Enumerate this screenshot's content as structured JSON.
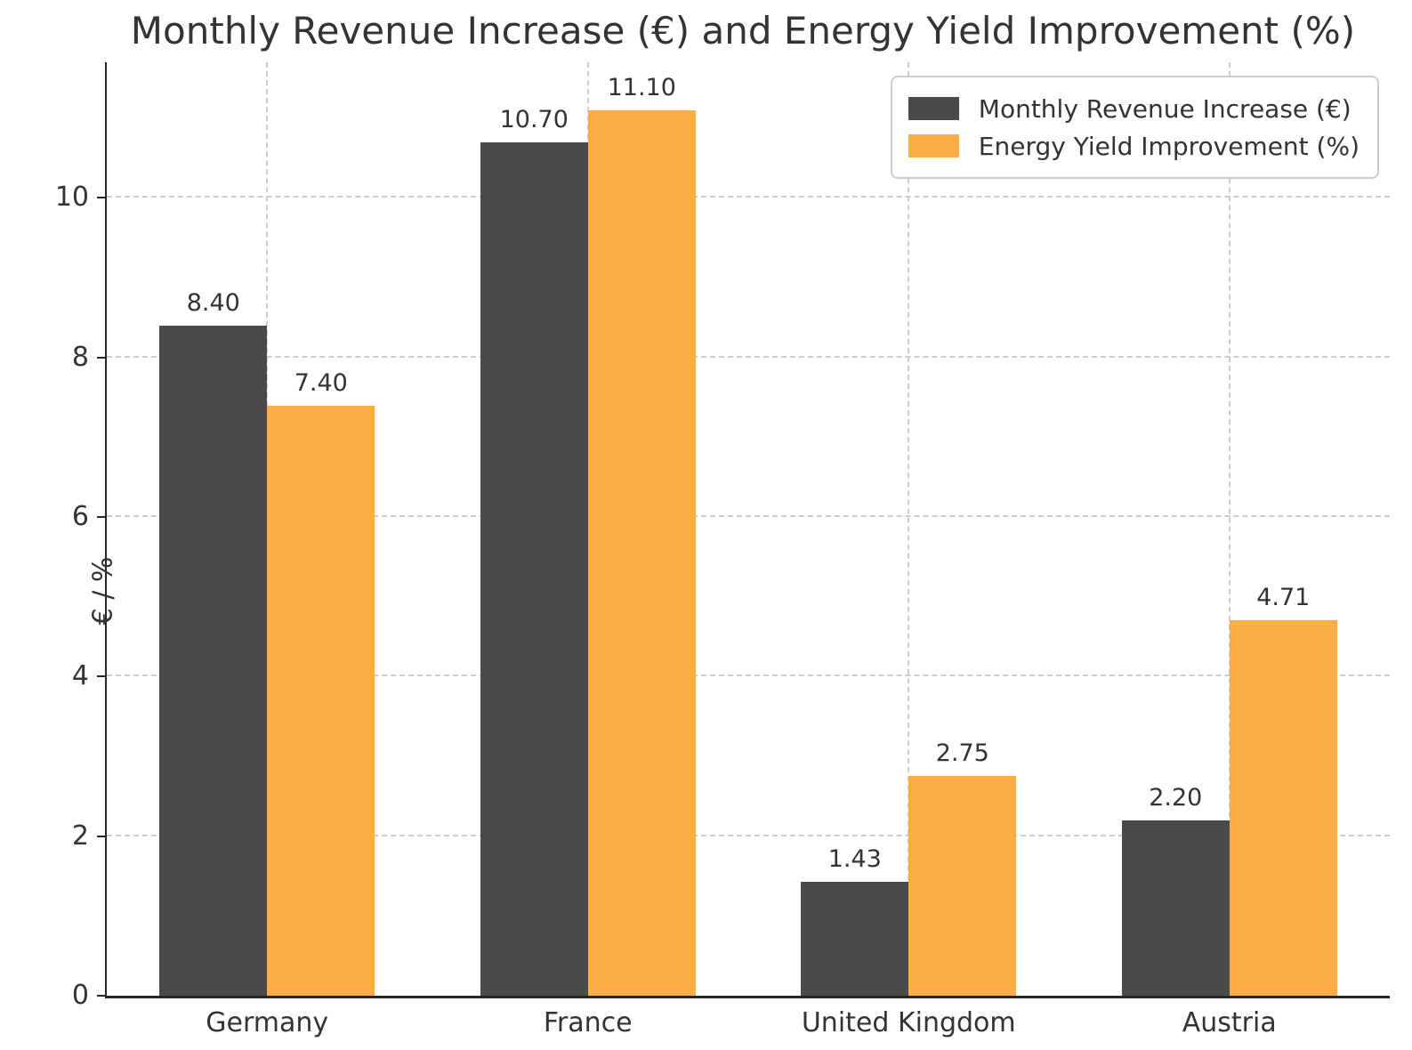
{
  "chart_data": {
    "type": "bar",
    "title": "Monthly Revenue Increase (€) and Energy Yield Improvement (%)",
    "xlabel": "",
    "ylabel": "€ / %",
    "categories": [
      "Germany",
      "France",
      "United Kingdom",
      "Austria"
    ],
    "series": [
      {
        "name": "Monthly Revenue Increase (€)",
        "color": "#4a4a4a",
        "values": [
          8.4,
          10.7,
          1.43,
          2.2
        ]
      },
      {
        "name": "Energy Yield Improvement (%)",
        "color": "#fcae45",
        "values": [
          7.4,
          11.1,
          2.75,
          4.71
        ]
      }
    ],
    "value_labels": [
      [
        "8.40",
        "10.70",
        "1.43",
        "2.20"
      ],
      [
        "7.40",
        "11.10",
        "2.75",
        "4.71"
      ]
    ],
    "ylim": [
      0,
      11.7
    ],
    "yticks": [
      0,
      2,
      4,
      6,
      8,
      10
    ],
    "grid": true,
    "grid_style": "dashed",
    "legend_position": "upper right"
  },
  "style": {
    "background": "#ffffff",
    "text_color": "#333333",
    "gridline_color": "#cccccc",
    "axis_color": "#262626"
  }
}
